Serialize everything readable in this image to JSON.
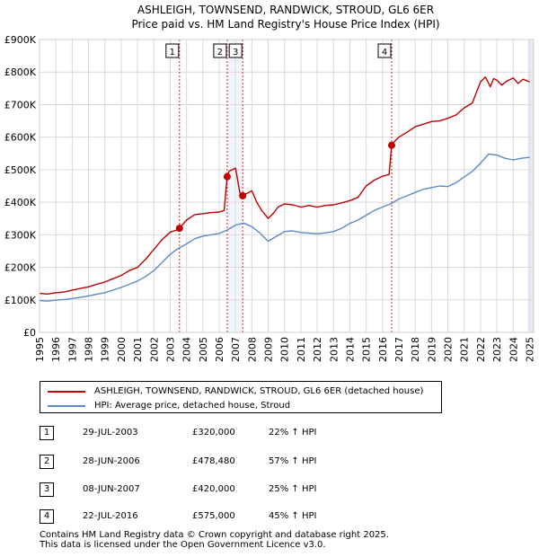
{
  "colors": {
    "property": "#c00000",
    "hpi": "#5b8ac6",
    "marker_line": "#d02020",
    "band": "#e6ebf7",
    "grid": "#d9d9d9"
  },
  "chart_data": {
    "type": "line",
    "title": "ASHLEIGH, TOWNSEND, RANDWICK, STROUD, GL6 6ER",
    "subtitle": "Price paid vs. HM Land Registry's House Price Index (HPI)",
    "xlim": [
      1995.0,
      2025.25
    ],
    "ylim": [
      0,
      900000
    ],
    "yticks": [
      {
        "value": 0,
        "label": "£0"
      },
      {
        "value": 100000,
        "label": "£100K"
      },
      {
        "value": 200000,
        "label": "£200K"
      },
      {
        "value": 300000,
        "label": "£300K"
      },
      {
        "value": 400000,
        "label": "£400K"
      },
      {
        "value": 500000,
        "label": "£500K"
      },
      {
        "value": 600000,
        "label": "£600K"
      },
      {
        "value": 700000,
        "label": "£700K"
      },
      {
        "value": 800000,
        "label": "£800K"
      },
      {
        "value": 900000,
        "label": "£900K"
      }
    ],
    "xticks": [
      "1995",
      "1996",
      "1997",
      "1998",
      "1999",
      "2000",
      "2001",
      "2002",
      "2003",
      "2004",
      "2005",
      "2006",
      "2007",
      "2008",
      "2009",
      "2010",
      "2011",
      "2012",
      "2013",
      "2014",
      "2015",
      "2016",
      "2017",
      "2018",
      "2019",
      "2020",
      "2021",
      "2022",
      "2023",
      "2024",
      "2025"
    ],
    "series": [
      {
        "name": "ASHLEIGH, TOWNSEND, RANDWICK, STROUD, GL6 6ER (detached house)",
        "x": [
          1995.0,
          1995.5,
          1996.0,
          1996.5,
          1997.0,
          1997.5,
          1998.0,
          1998.5,
          1999.0,
          1999.5,
          2000.0,
          2000.5,
          2001.0,
          2001.5,
          2002.0,
          2002.5,
          2003.0,
          2003.5,
          2003.57,
          2004.0,
          2004.5,
          2005.0,
          2005.5,
          2006.0,
          2006.3,
          2006.49,
          2006.6,
          2007.0,
          2007.3,
          2007.44,
          2007.6,
          2008.0,
          2008.3,
          2008.6,
          2009.0,
          2009.3,
          2009.6,
          2010.0,
          2010.5,
          2011.0,
          2011.5,
          2012.0,
          2012.5,
          2013.0,
          2013.5,
          2014.0,
          2014.5,
          2015.0,
          2015.5,
          2016.0,
          2016.4,
          2016.56,
          2016.7,
          2017.0,
          2017.5,
          2018.0,
          2018.5,
          2019.0,
          2019.5,
          2020.0,
          2020.5,
          2021.0,
          2021.5,
          2022.0,
          2022.3,
          2022.6,
          2022.8,
          2023.0,
          2023.3,
          2023.6,
          2024.0,
          2024.3,
          2024.6,
          2025.0
        ],
        "y": [
          120000,
          118000,
          122000,
          124000,
          130000,
          135000,
          140000,
          148000,
          155000,
          165000,
          175000,
          190000,
          200000,
          225000,
          255000,
          285000,
          308000,
          316000,
          320000,
          345000,
          362000,
          365000,
          368000,
          370000,
          375000,
          478480,
          495000,
          505000,
          420000,
          420000,
          425000,
          435000,
          400000,
          375000,
          350000,
          365000,
          385000,
          395000,
          392000,
          385000,
          390000,
          385000,
          390000,
          392000,
          398000,
          405000,
          415000,
          450000,
          468000,
          480000,
          485000,
          575000,
          585000,
          600000,
          615000,
          632000,
          640000,
          648000,
          650000,
          658000,
          668000,
          690000,
          705000,
          770000,
          785000,
          755000,
          780000,
          775000,
          760000,
          772000,
          782000,
          765000,
          778000,
          770000
        ]
      },
      {
        "name": "HPI: Average price, detached house, Stroud",
        "x": [
          1995.0,
          1995.5,
          1996.0,
          1996.5,
          1997.0,
          1997.5,
          1998.0,
          1998.5,
          1999.0,
          1999.5,
          2000.0,
          2000.5,
          2001.0,
          2001.5,
          2002.0,
          2002.5,
          2003.0,
          2003.5,
          2004.0,
          2004.5,
          2005.0,
          2005.5,
          2006.0,
          2006.5,
          2007.0,
          2007.5,
          2008.0,
          2008.5,
          2009.0,
          2009.5,
          2010.0,
          2010.5,
          2011.0,
          2011.5,
          2012.0,
          2012.5,
          2013.0,
          2013.5,
          2014.0,
          2014.5,
          2015.0,
          2015.5,
          2016.0,
          2016.5,
          2017.0,
          2017.5,
          2018.0,
          2018.5,
          2019.0,
          2019.5,
          2020.0,
          2020.5,
          2021.0,
          2021.5,
          2022.0,
          2022.5,
          2023.0,
          2023.5,
          2024.0,
          2024.5,
          2025.0
        ],
        "y": [
          98000,
          96000,
          99000,
          101000,
          104000,
          108000,
          112000,
          117000,
          122000,
          130000,
          138000,
          148000,
          158000,
          172000,
          190000,
          215000,
          240000,
          258000,
          272000,
          288000,
          296000,
          300000,
          304000,
          315000,
          330000,
          336000,
          325000,
          305000,
          280000,
          295000,
          310000,
          312000,
          307000,
          305000,
          303000,
          306000,
          310000,
          320000,
          335000,
          345000,
          360000,
          375000,
          385000,
          395000,
          410000,
          420000,
          430000,
          440000,
          445000,
          450000,
          448000,
          460000,
          478000,
          495000,
          520000,
          548000,
          545000,
          535000,
          530000,
          535000,
          538000
        ]
      }
    ],
    "sales": [
      {
        "num": "1",
        "x": 2003.57,
        "value": 320000
      },
      {
        "num": "2",
        "x": 2006.49,
        "value": 478480
      },
      {
        "num": "3",
        "x": 2007.44,
        "value": 420000
      },
      {
        "num": "4",
        "x": 2016.56,
        "value": 575000
      }
    ]
  },
  "legend": {
    "property_label": "ASHLEIGH, TOWNSEND, RANDWICK, STROUD, GL6 6ER (detached house)",
    "hpi_label": "HPI: Average price, detached house, Stroud"
  },
  "sales_table": [
    {
      "num": "1",
      "date": "29-JUL-2003",
      "price": "£320,000",
      "hpi": "22% ↑ HPI"
    },
    {
      "num": "2",
      "date": "28-JUN-2006",
      "price": "£478,480",
      "hpi": "57% ↑ HPI"
    },
    {
      "num": "3",
      "date": "08-JUN-2007",
      "price": "£420,000",
      "hpi": "25% ↑ HPI"
    },
    {
      "num": "4",
      "date": "22-JUL-2016",
      "price": "£575,000",
      "hpi": "45% ↑ HPI"
    }
  ],
  "footer": {
    "line1": "Contains HM Land Registry data © Crown copyright and database right 2025.",
    "line2": "This data is licensed under the Open Government Licence v3.0."
  }
}
